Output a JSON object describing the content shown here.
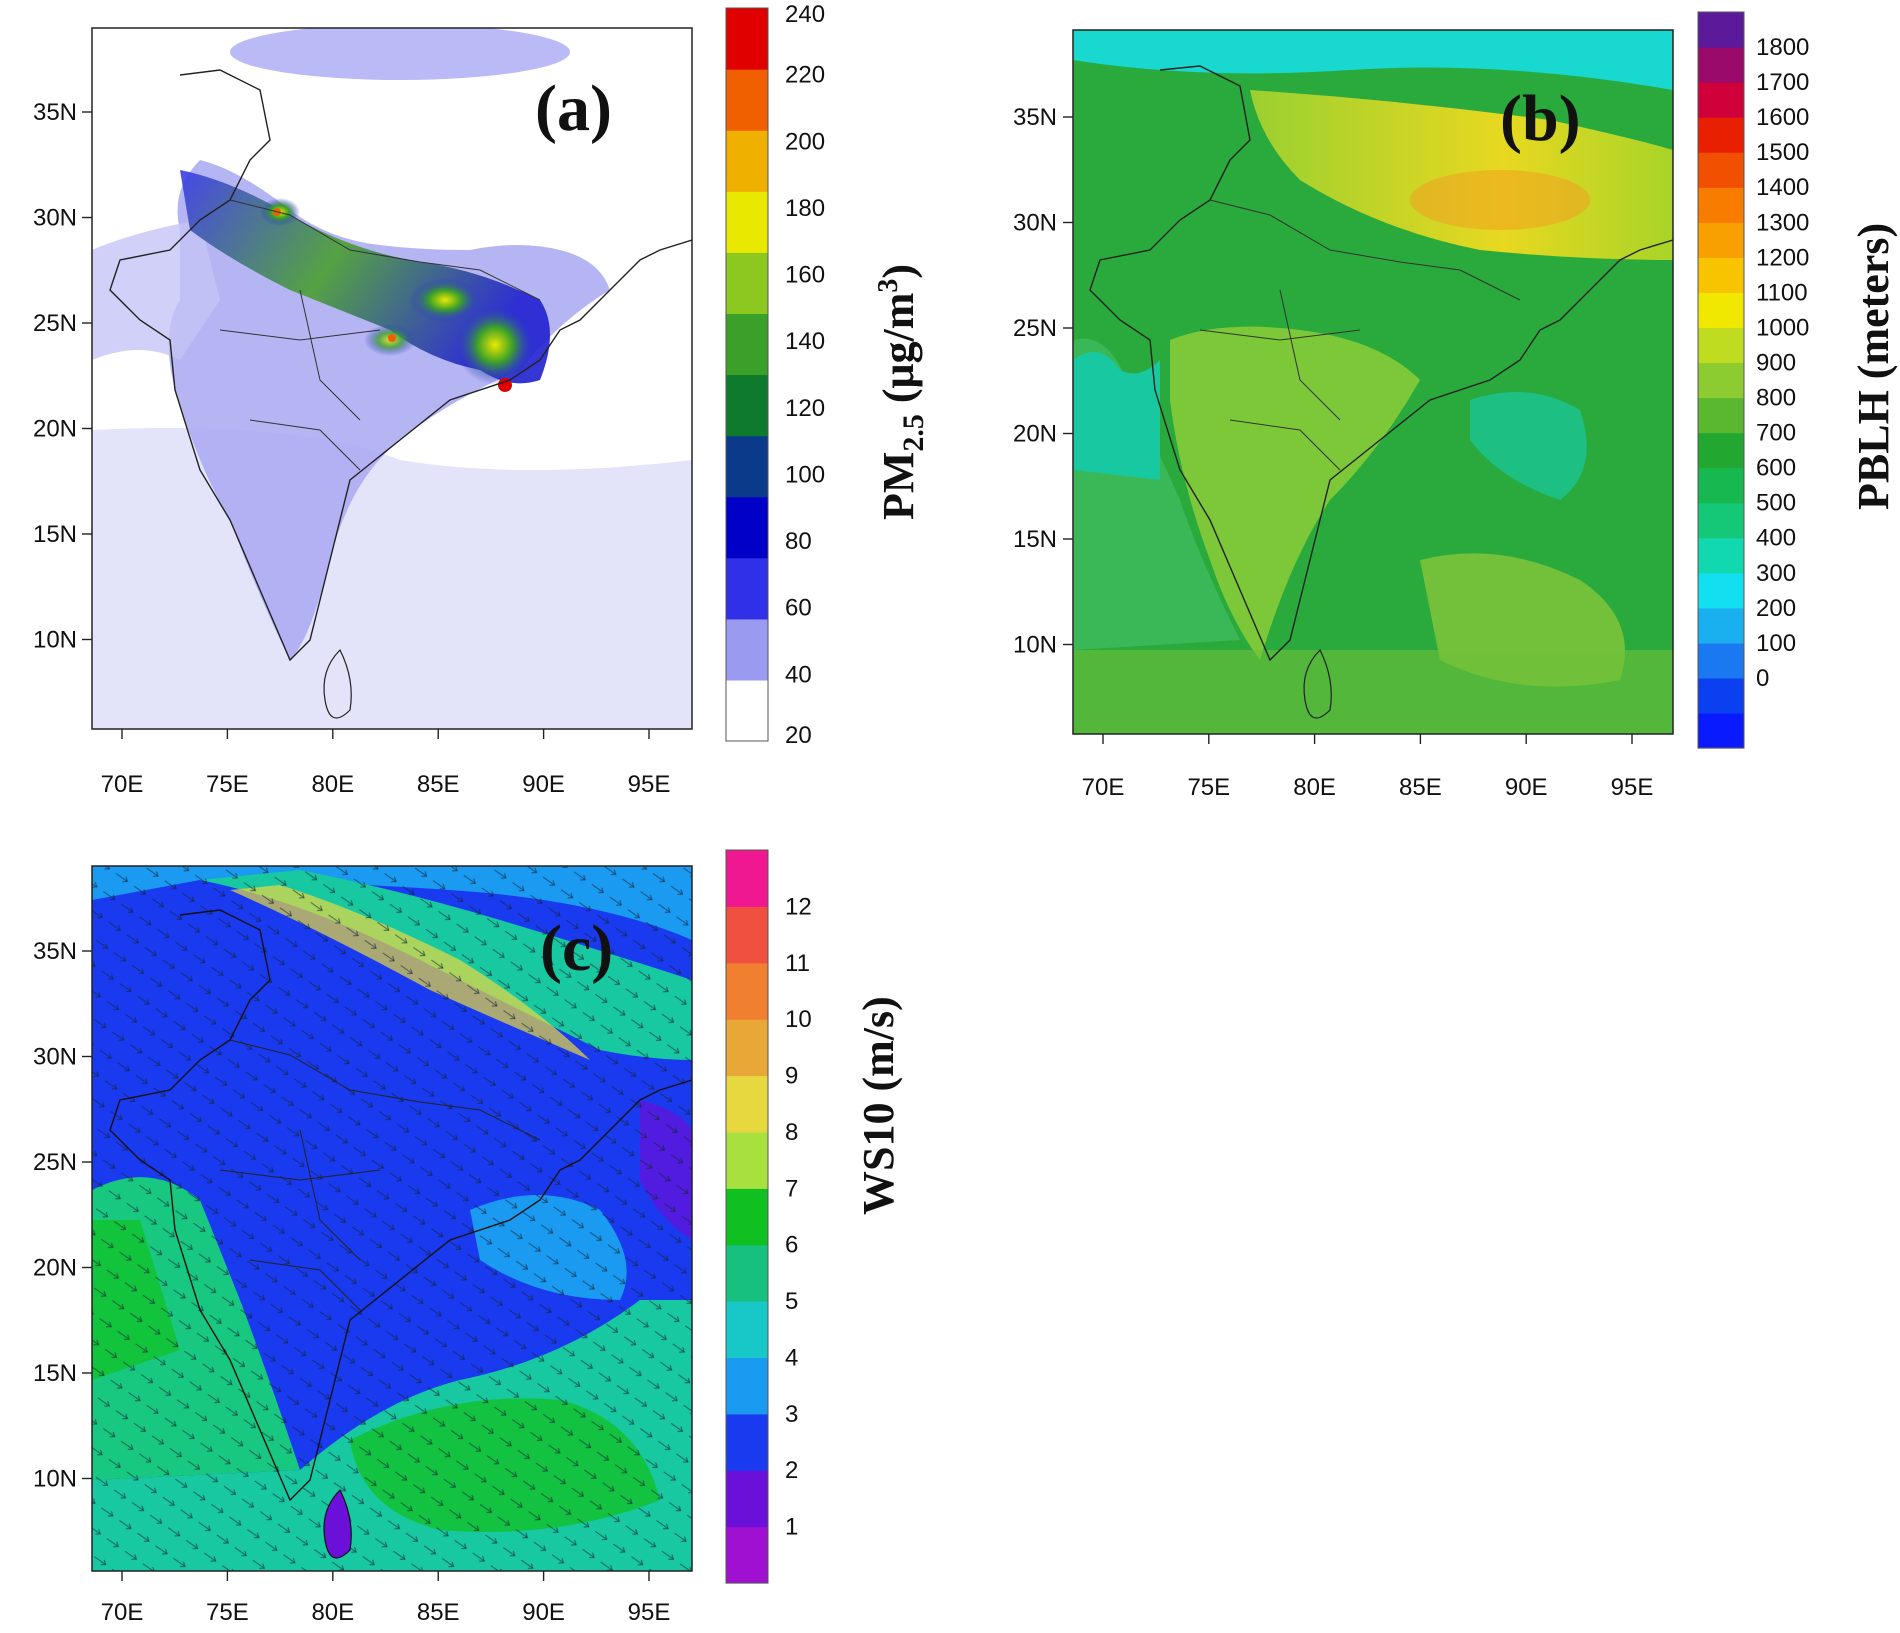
{
  "panels": [
    {
      "id": "a",
      "label": "(a)",
      "lon_ticks": [
        "70E",
        "75E",
        "80E",
        "85E",
        "90E",
        "95E"
      ],
      "lat_ticks": [
        "35N",
        "30N",
        "25N",
        "20N",
        "15N",
        "10N"
      ],
      "colorbar": {
        "quantity": "PM",
        "subscript": "2.5",
        "unit_text": " (μg/m",
        "unit_sup": "3",
        "unit_close": ")",
        "tick_labels": [
          "240",
          "220",
          "200",
          "180",
          "160",
          "140",
          "120",
          "100",
          "80",
          "60",
          "40",
          "20"
        ],
        "colors": [
          "#ffffff",
          "#9a9af0",
          "#3030e8",
          "#0000c8",
          "#0b3a8a",
          "#0e7a2e",
          "#3aa02a",
          "#8cc820",
          "#e8e800",
          "#f0b000",
          "#f06000",
          "#e00000"
        ]
      }
    },
    {
      "id": "b",
      "label": "(b)",
      "lon_ticks": [
        "70E",
        "75E",
        "80E",
        "85E",
        "90E",
        "95E"
      ],
      "lat_ticks": [
        "35N",
        "30N",
        "25N",
        "20N",
        "15N",
        "10N"
      ],
      "colorbar": {
        "title": "PBLH (meters)",
        "tick_labels": [
          "1800",
          "1700",
          "1600",
          "1500",
          "1400",
          "1300",
          "1200",
          "1100",
          "1000",
          "900",
          "800",
          "700",
          "600",
          "500",
          "400",
          "300",
          "200",
          "100",
          "0"
        ],
        "colors": [
          "#0a1aff",
          "#0a40f0",
          "#1a78f0",
          "#1ab0f0",
          "#12e0f0",
          "#12d8b0",
          "#14c878",
          "#18b850",
          "#22a830",
          "#5ab830",
          "#8ccc30",
          "#c0dc20",
          "#f0e800",
          "#f8c400",
          "#f8a000",
          "#f87c00",
          "#f05000",
          "#e82000",
          "#d0003a",
          "#9a0a6a",
          "#5a1a9a"
        ]
      }
    },
    {
      "id": "c",
      "label": "(c)",
      "lon_ticks": [
        "70E",
        "75E",
        "80E",
        "85E",
        "90E",
        "95E"
      ],
      "lat_ticks": [
        "35N",
        "30N",
        "25N",
        "20N",
        "15N",
        "10N"
      ],
      "colorbar": {
        "title": "WS10 (m/s)",
        "tick_labels": [
          "12",
          "11",
          "10",
          "9",
          "8",
          "7",
          "6",
          "5",
          "4",
          "3",
          "2",
          "1"
        ],
        "colors": [
          "#a010d0",
          "#6a10d8",
          "#1a3af0",
          "#1a9af0",
          "#18c8c8",
          "#18c080",
          "#10c020",
          "#a8e040",
          "#e8d840",
          "#e8a838",
          "#f08030",
          "#f05040",
          "#f01890"
        ]
      }
    }
  ]
}
